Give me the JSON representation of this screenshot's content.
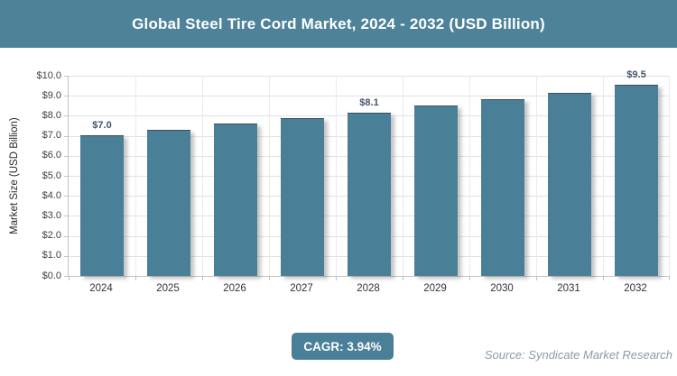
{
  "header": {
    "title": "Global Steel Tire Cord Market, 2024 - 2032 (USD Billion)"
  },
  "chart_data": {
    "type": "bar",
    "title": "Global Steel Tire Cord Market, 2024 - 2032 (USD Billion)",
    "categories": [
      "2024",
      "2025",
      "2026",
      "2027",
      "2028",
      "2029",
      "2030",
      "2031",
      "2032"
    ],
    "values": [
      7.0,
      7.25,
      7.55,
      7.85,
      8.1,
      8.45,
      8.8,
      9.1,
      9.5
    ],
    "data_labels": [
      "$7.0",
      null,
      null,
      null,
      "$8.1",
      null,
      null,
      null,
      "$9.5"
    ],
    "xlabel": "",
    "ylabel": "Market Size (USD Billion)",
    "ylim": [
      0,
      10
    ],
    "ytick_step": 1.0,
    "ytick_labels": [
      "$0.0",
      "$1.0",
      "$2.0",
      "$3.0",
      "$4.0",
      "$5.0",
      "$6.0",
      "$7.0",
      "$8.0",
      "$9.0",
      "$10.0"
    ],
    "grid": "horizontal and vertical gridlines on",
    "legend": "none",
    "bar_color": "#4A7F98"
  },
  "footer": {
    "cagr_label": "CAGR: 3.94%",
    "source": "Source: Syndicate Market Research"
  },
  "colors": {
    "header_bg": "#4D8299",
    "bar": "#4A7F98",
    "badge_bg": "#4A7F98",
    "data_label": "#44546A",
    "axis_text": "#404040",
    "gridline": "#E2E2E2",
    "axis_line": "#C2C2C2",
    "source_text": "#8C9BA5"
  }
}
